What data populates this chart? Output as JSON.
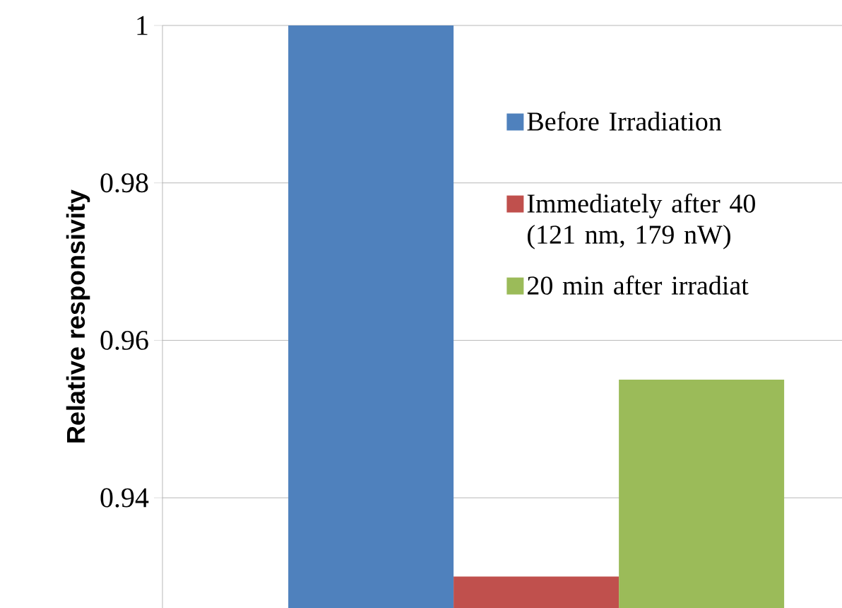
{
  "chart_data": {
    "type": "bar",
    "ylabel": "Relative responsivity",
    "categories": [
      null
    ],
    "series": [
      {
        "name": "Before Irradiation",
        "color": "#4f81bd",
        "values": [
          1
        ]
      },
      {
        "name": "Immediately after 40 (121 nm, 179 nW)",
        "color": "#c0504d",
        "values": [
          0.93
        ]
      },
      {
        "name": "20 min after irradiat",
        "color": "#9bbb59",
        "values": [
          0.955
        ]
      }
    ],
    "ylim": [
      0.926,
      1
    ],
    "yticks": [
      0.94,
      0.96,
      0.98,
      1
    ],
    "grid": "y",
    "legend": "top right"
  }
}
